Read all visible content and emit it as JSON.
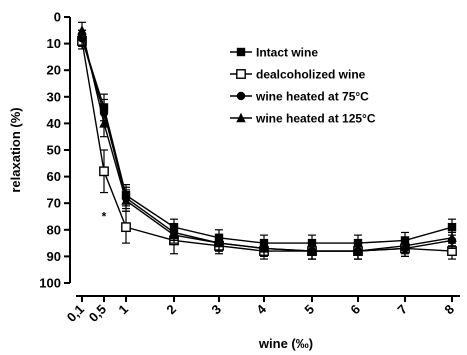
{
  "chart_data": {
    "type": "line",
    "xlabel": "wine (‰)",
    "ylabel": "relaxation (%)",
    "x_tick_labels": [
      "0,1",
      "0,5",
      "1",
      "2",
      "3",
      "4",
      "5",
      "6",
      "7",
      "8"
    ],
    "x": [
      0.1,
      0.5,
      1,
      2,
      3,
      4,
      5,
      6,
      7,
      8
    ],
    "y_ticks": [
      0,
      10,
      20,
      30,
      40,
      50,
      60,
      70,
      80,
      90,
      100
    ],
    "ylim": [
      0,
      100
    ],
    "y_inverted": true,
    "grid": false,
    "legend_position": "top-right",
    "annotations": [
      {
        "text": "*",
        "x": 0.5,
        "y": 75
      }
    ],
    "series": [
      {
        "name": "Intact wine",
        "marker": "square-filled",
        "values": [
          8,
          34,
          67,
          79,
          83,
          85,
          85,
          85,
          84,
          79
        ],
        "errors": [
          3,
          5,
          4,
          3,
          3,
          3,
          3,
          3,
          3,
          3
        ]
      },
      {
        "name": "dealcoholized wine",
        "marker": "square-open",
        "values": [
          9,
          58,
          79,
          84,
          86,
          88,
          88,
          88,
          87,
          88
        ],
        "errors": [
          3,
          8,
          6,
          5,
          3,
          3,
          3,
          3,
          3,
          3
        ]
      },
      {
        "name": "wine heated at 75°C",
        "marker": "circle-filled",
        "values": [
          8,
          36,
          68,
          81,
          85,
          87,
          88,
          88,
          87,
          84
        ],
        "errors": [
          3,
          5,
          4,
          3,
          3,
          3,
          3,
          3,
          3,
          3
        ]
      },
      {
        "name": "wine heated at 125°C",
        "marker": "triangle-filled",
        "values": [
          5,
          40,
          69,
          82,
          85,
          87,
          88,
          88,
          86,
          83
        ],
        "errors": [
          3,
          5,
          4,
          3,
          3,
          3,
          3,
          3,
          3,
          3
        ]
      }
    ]
  }
}
